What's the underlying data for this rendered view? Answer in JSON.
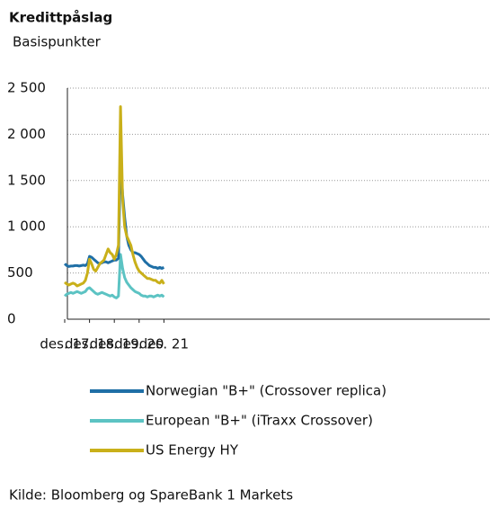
{
  "chart_data": {
    "type": "line",
    "title": "Kredittpåslag",
    "subtitle": "Basispunkter",
    "source": "Kilde: Bloomberg og SpareBank 1 Markets",
    "x": [
      "2017-12",
      "2018-01",
      "2018-02",
      "2018-03",
      "2018-04",
      "2018-05",
      "2018-06",
      "2018-07",
      "2018-08",
      "2018-09",
      "2018-10",
      "2018-11",
      "2018-12",
      "2019-01",
      "2019-02",
      "2019-03",
      "2019-04",
      "2019-05",
      "2019-06",
      "2019-07",
      "2019-08",
      "2019-09",
      "2019-10",
      "2019-11",
      "2019-12",
      "2020-01",
      "2020-02",
      "2020-03",
      "2020-04",
      "2020-05",
      "2020-06",
      "2020-07",
      "2020-08",
      "2020-09",
      "2020-10",
      "2020-11",
      "2020-12",
      "2021-01",
      "2021-02",
      "2021-03",
      "2021-04",
      "2021-05",
      "2021-06",
      "2021-07",
      "2021-08",
      "2021-09",
      "2021-10",
      "2021-11",
      "2021-12"
    ],
    "xticks": [
      {
        "value": "2017-12",
        "label": "des. 17"
      },
      {
        "value": "2018-12",
        "label": "des. 18"
      },
      {
        "value": "2019-12",
        "label": "des. 19"
      },
      {
        "value": "2020-12",
        "label": "des. 20"
      },
      {
        "value": "2021-12",
        "label": "des. 21"
      }
    ],
    "ylim": [
      0,
      2500
    ],
    "yticks": [
      0,
      500,
      {
        "value": 1000,
        "label": "1 000"
      },
      {
        "value": 1500,
        "label": "1 500"
      },
      {
        "value": 2000,
        "label": "2 000"
      },
      {
        "value": 2500,
        "label": "2 500"
      }
    ],
    "grid": true,
    "series": [
      {
        "name": "Norwegian \"B+\" (Crossover replica)",
        "color": "#1f6fa6",
        "values": [
          600,
          580,
          570,
          575,
          575,
          580,
          580,
          575,
          580,
          585,
          580,
          600,
          680,
          670,
          650,
          630,
          610,
          600,
          610,
          620,
          620,
          610,
          620,
          630,
          640,
          640,
          660,
          1750,
          1350,
          1100,
          900,
          800,
          750,
          720,
          720,
          710,
          700,
          680,
          650,
          620,
          600,
          580,
          570,
          560,
          560,
          550,
          560,
          550,
          560
        ]
      },
      {
        "name": "European \"B+\" (iTraxx Crossover)",
        "color": "#5cc3c3",
        "values": [
          250,
          270,
          280,
          290,
          280,
          290,
          300,
          290,
          280,
          290,
          300,
          330,
          340,
          320,
          300,
          280,
          270,
          280,
          290,
          280,
          270,
          260,
          250,
          260,
          240,
          230,
          250,
          700,
          550,
          450,
          400,
          370,
          340,
          320,
          300,
          290,
          280,
          260,
          250,
          250,
          240,
          250,
          250,
          240,
          250,
          260,
          250,
          260,
          240
        ]
      },
      {
        "name": "US Energy HY",
        "color": "#c9b01a",
        "values": [
          400,
          380,
          370,
          380,
          390,
          380,
          360,
          370,
          380,
          390,
          420,
          500,
          650,
          600,
          540,
          520,
          560,
          600,
          620,
          640,
          700,
          760,
          720,
          700,
          650,
          700,
          800,
          2300,
          1300,
          1000,
          900,
          850,
          800,
          700,
          620,
          560,
          520,
          500,
          480,
          460,
          440,
          440,
          430,
          420,
          420,
          400,
          390,
          420,
          380
        ]
      }
    ]
  }
}
